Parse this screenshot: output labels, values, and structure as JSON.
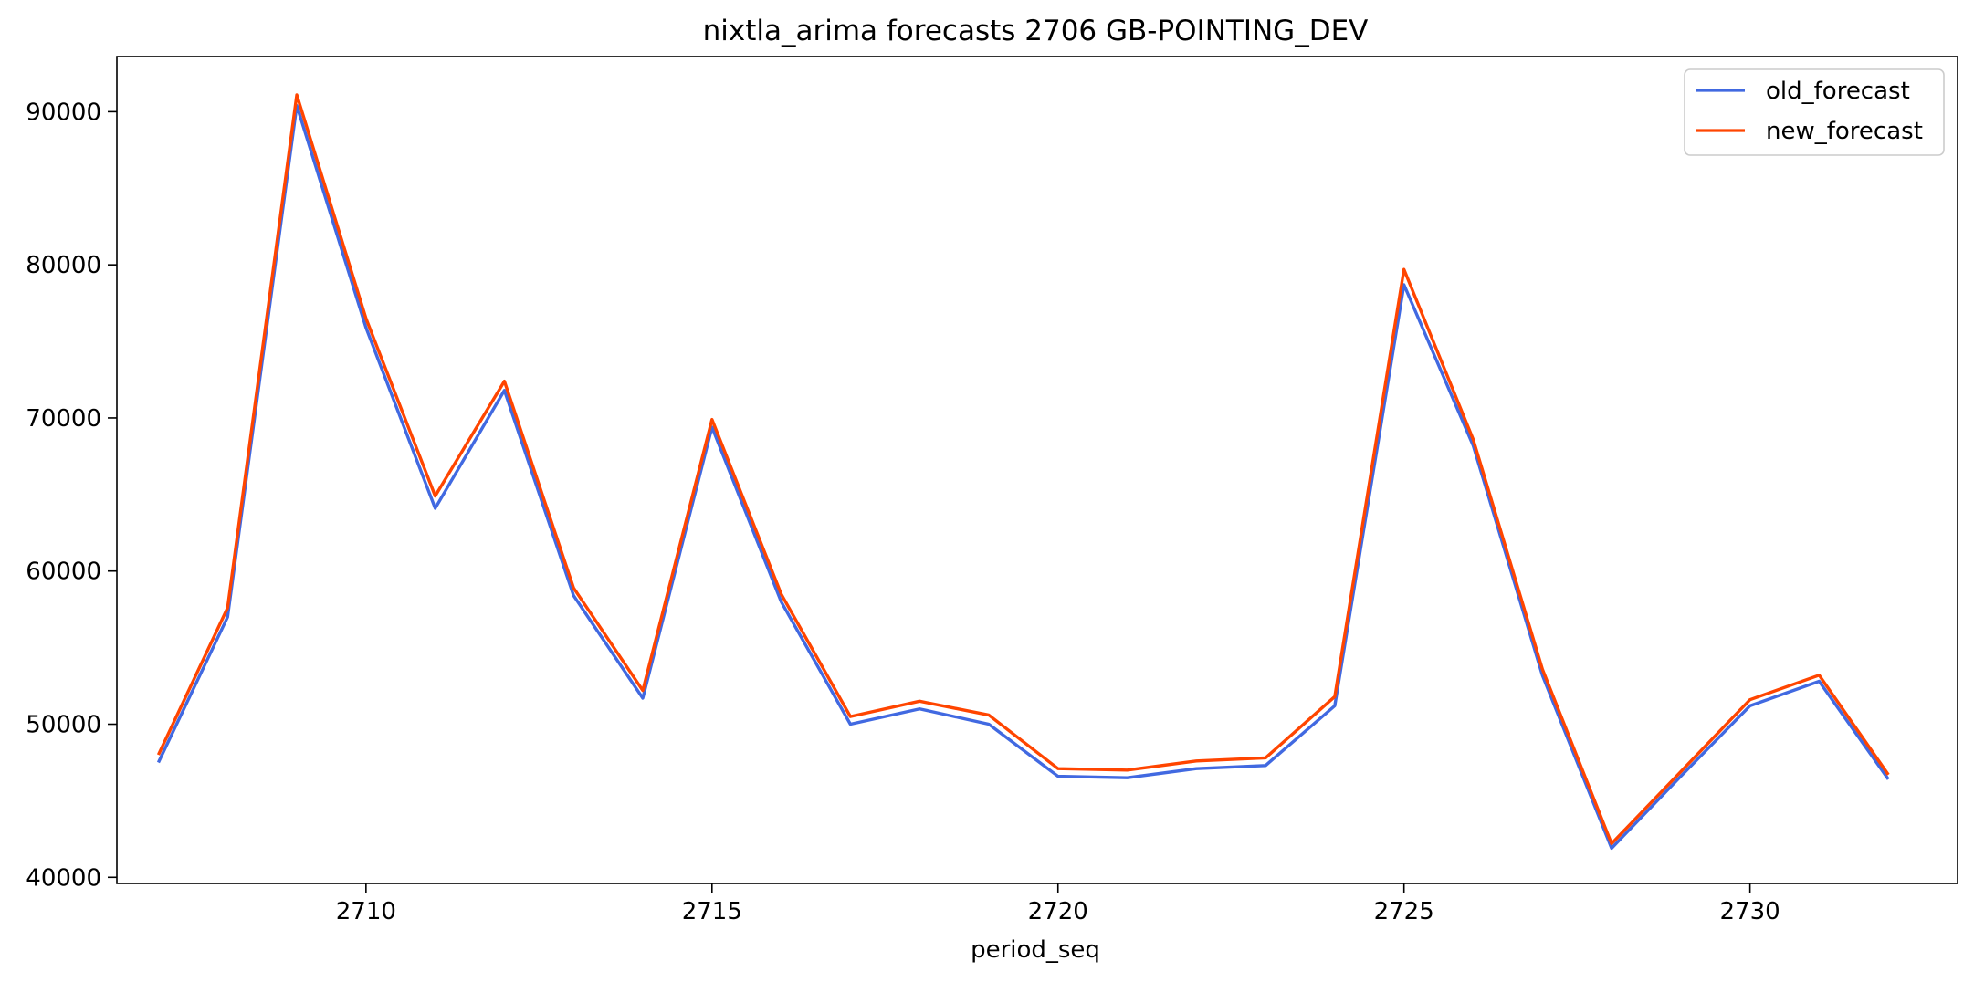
{
  "chart_data": {
    "type": "line",
    "title": "nixtla_arima forecasts 2706 GB-POINTING_DEV",
    "xlabel": "period_seq",
    "ylabel": "",
    "x": [
      2707,
      2708,
      2709,
      2710,
      2711,
      2712,
      2713,
      2714,
      2715,
      2716,
      2717,
      2718,
      2719,
      2720,
      2721,
      2722,
      2723,
      2724,
      2725,
      2726,
      2727,
      2728,
      2729,
      2730,
      2731,
      2732
    ],
    "xlim": [
      2706.4,
      2733.0
    ],
    "ylim": [
      39600,
      93600
    ],
    "xticks": [
      2710,
      2715,
      2720,
      2725,
      2730
    ],
    "yticks": [
      40000,
      50000,
      60000,
      70000,
      80000,
      90000
    ],
    "grid": false,
    "legend": "upper right",
    "series": [
      {
        "name": "old_forecast",
        "color": "#4169e1",
        "values": [
          47500,
          57000,
          90400,
          75900,
          64100,
          71800,
          58400,
          51700,
          69400,
          58000,
          50000,
          51000,
          50000,
          46600,
          46500,
          47100,
          47300,
          51200,
          78700,
          68200,
          53200,
          41900,
          46600,
          51200,
          52800,
          46400
        ]
      },
      {
        "name": "new_forecast",
        "color": "#ff4500",
        "values": [
          48000,
          57600,
          91100,
          76500,
          64900,
          72400,
          58900,
          52200,
          69900,
          58500,
          50500,
          51500,
          50600,
          47100,
          47000,
          47600,
          47800,
          51800,
          79700,
          68600,
          53600,
          42200,
          46900,
          51600,
          53200,
          46700
        ]
      }
    ]
  }
}
